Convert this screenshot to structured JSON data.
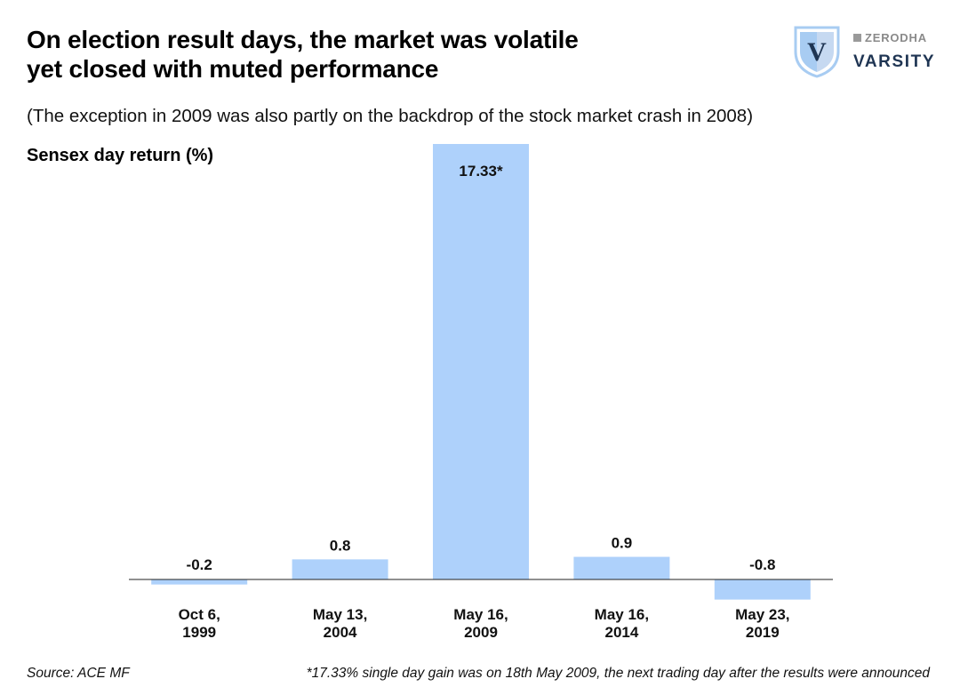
{
  "header": {
    "title_line1": "On election result days, the market was volatile",
    "title_line2": "yet closed with muted performance",
    "subtitle": "(The exception in 2009 was also partly on the backdrop of the stock market crash in 2008)"
  },
  "brand": {
    "shield_letter": "V",
    "parent": "ZERODHA",
    "name": "VARSITY"
  },
  "chart_data": {
    "type": "bar",
    "ylabel": "Sensex day return (%)",
    "xlabel": "",
    "categories": [
      [
        "Oct 6,",
        "1999"
      ],
      [
        "May 13,",
        "2004"
      ],
      [
        "May 16,",
        "2009"
      ],
      [
        "May 16,",
        "2014"
      ],
      [
        "May 23,",
        "2019"
      ]
    ],
    "values": [
      -0.2,
      0.8,
      17.33,
      0.9,
      -0.8
    ],
    "data_labels": [
      "-0.2",
      "0.8",
      "17.33*",
      "0.9",
      "-0.8"
    ],
    "bar_color": "#aed1fb",
    "axis_color": "#222222",
    "grid": false,
    "legend": "none"
  },
  "footer": {
    "source": "Source: ACE MF",
    "note": "*17.33% single day gain was on 18th May 2009, the next trading day after the results were announced"
  },
  "colors": {
    "shield_dark": "#1f3553",
    "shield_light": "#a8ccf2",
    "shield_mid": "#5b93d6"
  }
}
